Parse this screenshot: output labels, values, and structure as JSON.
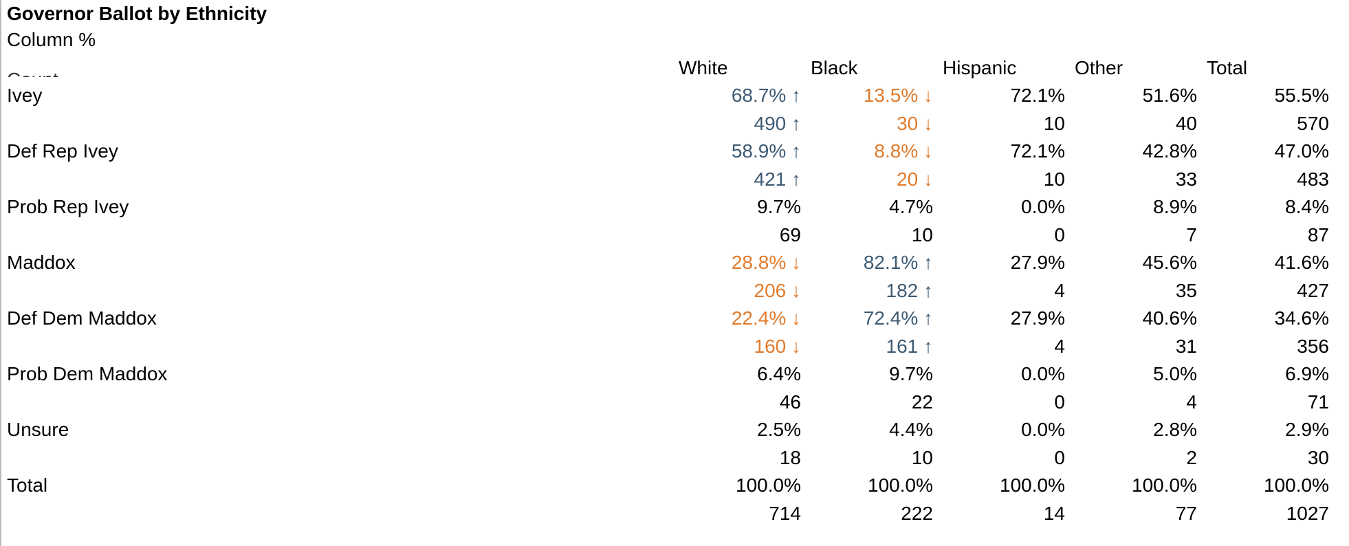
{
  "title": "Governor Ballot by Ethnicity",
  "subtitle": "Column %",
  "caption_partial": "Count",
  "columns": [
    "White",
    "Black",
    "Hispanic",
    "Other",
    "Total"
  ],
  "arrows": {
    "up": "↑",
    "down": "↓"
  },
  "colors": {
    "significant_high": "#3d5a73",
    "significant_low": "#e07b2c"
  },
  "rows": [
    {
      "label": "Ivey",
      "pct": [
        {
          "v": "68.7%",
          "s": "up"
        },
        {
          "v": "13.5%",
          "s": "down"
        },
        {
          "v": "72.1%",
          "s": ""
        },
        {
          "v": "51.6%",
          "s": ""
        },
        {
          "v": "55.5%",
          "s": ""
        }
      ],
      "counts": [
        {
          "v": "490",
          "s": "up"
        },
        {
          "v": "30",
          "s": "down"
        },
        {
          "v": "10",
          "s": ""
        },
        {
          "v": "40",
          "s": ""
        },
        {
          "v": "570",
          "s": ""
        }
      ]
    },
    {
      "label": "Def Rep Ivey",
      "pct": [
        {
          "v": "58.9%",
          "s": "up"
        },
        {
          "v": "8.8%",
          "s": "down"
        },
        {
          "v": "72.1%",
          "s": ""
        },
        {
          "v": "42.8%",
          "s": ""
        },
        {
          "v": "47.0%",
          "s": ""
        }
      ],
      "counts": [
        {
          "v": "421",
          "s": "up"
        },
        {
          "v": "20",
          "s": "down"
        },
        {
          "v": "10",
          "s": ""
        },
        {
          "v": "33",
          "s": ""
        },
        {
          "v": "483",
          "s": ""
        }
      ]
    },
    {
      "label": "Prob Rep Ivey",
      "pct": [
        {
          "v": "9.7%",
          "s": ""
        },
        {
          "v": "4.7%",
          "s": ""
        },
        {
          "v": "0.0%",
          "s": ""
        },
        {
          "v": "8.9%",
          "s": ""
        },
        {
          "v": "8.4%",
          "s": ""
        }
      ],
      "counts": [
        {
          "v": "69",
          "s": ""
        },
        {
          "v": "10",
          "s": ""
        },
        {
          "v": "0",
          "s": ""
        },
        {
          "v": "7",
          "s": ""
        },
        {
          "v": "87",
          "s": ""
        }
      ]
    },
    {
      "label": "Maddox",
      "pct": [
        {
          "v": "28.8%",
          "s": "down"
        },
        {
          "v": "82.1%",
          "s": "up"
        },
        {
          "v": "27.9%",
          "s": ""
        },
        {
          "v": "45.6%",
          "s": ""
        },
        {
          "v": "41.6%",
          "s": ""
        }
      ],
      "counts": [
        {
          "v": "206",
          "s": "down"
        },
        {
          "v": "182",
          "s": "up"
        },
        {
          "v": "4",
          "s": ""
        },
        {
          "v": "35",
          "s": ""
        },
        {
          "v": "427",
          "s": ""
        }
      ]
    },
    {
      "label": "Def Dem Maddox",
      "pct": [
        {
          "v": "22.4%",
          "s": "down"
        },
        {
          "v": "72.4%",
          "s": "up"
        },
        {
          "v": "27.9%",
          "s": ""
        },
        {
          "v": "40.6%",
          "s": ""
        },
        {
          "v": "34.6%",
          "s": ""
        }
      ],
      "counts": [
        {
          "v": "160",
          "s": "down"
        },
        {
          "v": "161",
          "s": "up"
        },
        {
          "v": "4",
          "s": ""
        },
        {
          "v": "31",
          "s": ""
        },
        {
          "v": "356",
          "s": ""
        }
      ]
    },
    {
      "label": "Prob Dem Maddox",
      "pct": [
        {
          "v": "6.4%",
          "s": ""
        },
        {
          "v": "9.7%",
          "s": ""
        },
        {
          "v": "0.0%",
          "s": ""
        },
        {
          "v": "5.0%",
          "s": ""
        },
        {
          "v": "6.9%",
          "s": ""
        }
      ],
      "counts": [
        {
          "v": "46",
          "s": ""
        },
        {
          "v": "22",
          "s": ""
        },
        {
          "v": "0",
          "s": ""
        },
        {
          "v": "4",
          "s": ""
        },
        {
          "v": "71",
          "s": ""
        }
      ]
    },
    {
      "label": "Unsure",
      "pct": [
        {
          "v": "2.5%",
          "s": ""
        },
        {
          "v": "4.4%",
          "s": ""
        },
        {
          "v": "0.0%",
          "s": ""
        },
        {
          "v": "2.8%",
          "s": ""
        },
        {
          "v": "2.9%",
          "s": ""
        }
      ],
      "counts": [
        {
          "v": "18",
          "s": ""
        },
        {
          "v": "10",
          "s": ""
        },
        {
          "v": "0",
          "s": ""
        },
        {
          "v": "2",
          "s": ""
        },
        {
          "v": "30",
          "s": ""
        }
      ]
    },
    {
      "label": "Total",
      "pct": [
        {
          "v": "100.0%",
          "s": ""
        },
        {
          "v": "100.0%",
          "s": ""
        },
        {
          "v": "100.0%",
          "s": ""
        },
        {
          "v": "100.0%",
          "s": ""
        },
        {
          "v": "100.0%",
          "s": ""
        }
      ],
      "counts": [
        {
          "v": "714",
          "s": ""
        },
        {
          "v": "222",
          "s": ""
        },
        {
          "v": "14",
          "s": ""
        },
        {
          "v": "77",
          "s": ""
        },
        {
          "v": "1027",
          "s": ""
        }
      ]
    }
  ]
}
